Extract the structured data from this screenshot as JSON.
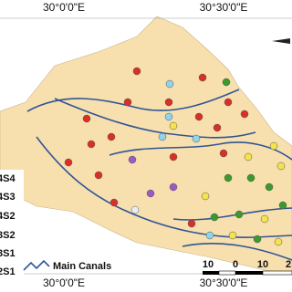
{
  "graticule": {
    "top": [
      "30°0'0\"E",
      "30°30'0\"E"
    ],
    "bottom": [
      "30°0'0\"E",
      "30°30'0\"E"
    ]
  },
  "legend": {
    "items": [
      "4S4",
      "4S3",
      "4S2",
      "3S2",
      "3S1",
      "2S1"
    ],
    "canals": "Main Canals"
  },
  "scale_bar": [
    "10",
    "0",
    "10",
    "2"
  ]
}
